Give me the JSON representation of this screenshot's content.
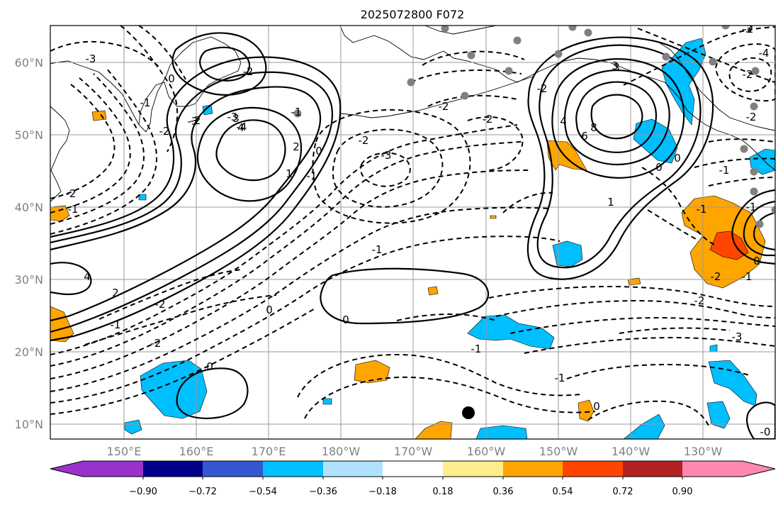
{
  "title": "2025072800 F072",
  "lon_labels": [
    "150°E",
    "160°E",
    "170°E",
    "180°W",
    "170°W",
    "160°W",
    "150°W",
    "140°W",
    "130°W"
  ],
  "lat_labels": [
    "60°N",
    "50°N",
    "40°N",
    "30°N",
    "20°N",
    "10°N"
  ],
  "colorbar": {
    "ticks": [
      "−0.90",
      "−0.72",
      "−0.54",
      "−0.36",
      "−0.18",
      "0.18",
      "0.36",
      "0.54",
      "0.72",
      "0.90"
    ],
    "colors": [
      "#9932cc",
      "#00008b",
      "#3457d0",
      "#00bfff",
      "#b0e2ff",
      "#ffffff",
      "#ffec8b",
      "#ffa500",
      "#ff4500",
      "#b22222",
      "#ff88b0"
    ]
  },
  "contour_labels": [
    "-1",
    "-2",
    "-3",
    "-1",
    "-2",
    "-3",
    "-4",
    "-2",
    "-3",
    "0",
    "-1",
    "-2",
    "3",
    "4",
    "2",
    "1",
    "0",
    "-1",
    "-2",
    "-3",
    "-2",
    "-1",
    "0",
    "-1",
    "0",
    "-1",
    "-2",
    "0",
    "-1",
    "-2",
    "3",
    "4",
    "6",
    "8",
    "1",
    "0",
    "0",
    "-1",
    "-2",
    "-3",
    "-4",
    "-2",
    "-2",
    "-1",
    "-2",
    "-1",
    "2",
    "-1",
    "0",
    "-2",
    "-2",
    "0",
    "-0",
    "-2",
    "4",
    "-3",
    "3"
  ]
}
